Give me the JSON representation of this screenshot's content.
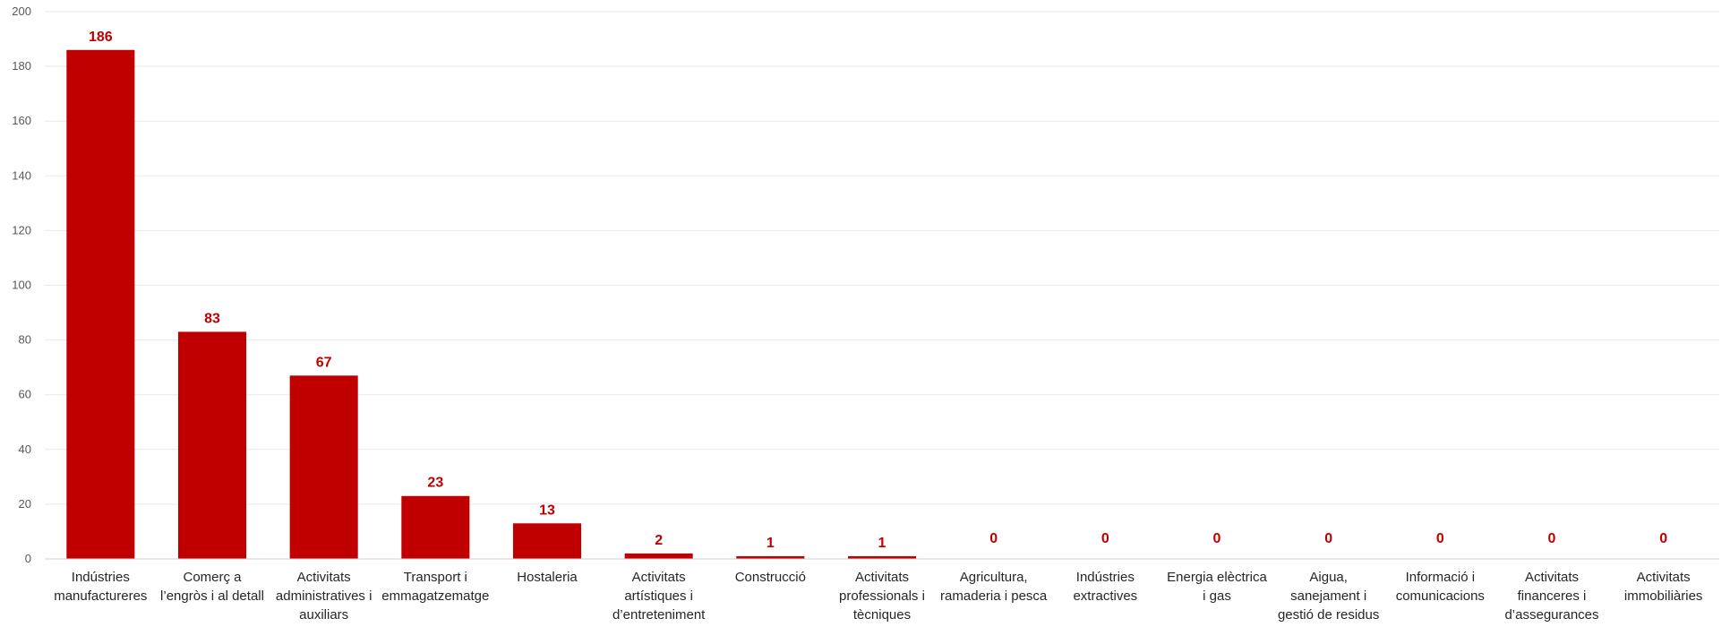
{
  "chart_data": {
    "type": "bar",
    "title": "",
    "xlabel": "",
    "ylabel": "",
    "ylim": [
      0,
      200
    ],
    "yticks": [
      0,
      20,
      40,
      60,
      80,
      100,
      120,
      140,
      160,
      180,
      200
    ],
    "grid": true,
    "bar_color": "#c00000",
    "label_color": "#c00000",
    "categories": [
      [
        "Indústries",
        "manufactureres"
      ],
      [
        "Comerç a",
        "l’engròs i al detall"
      ],
      [
        "Activitats",
        "administratives i",
        "auxiliars"
      ],
      [
        "Transport i",
        "emmagatzematge"
      ],
      [
        "Hostaleria"
      ],
      [
        "Activitats",
        "artístiques i",
        "d’entreteniment"
      ],
      [
        "Construcció"
      ],
      [
        "Activitats",
        "professionals i",
        "tècniques"
      ],
      [
        "Agricultura,",
        "ramaderia i pesca"
      ],
      [
        "Indústries",
        "extractives"
      ],
      [
        "Energia elèctrica",
        "i gas"
      ],
      [
        "Aigua,",
        "sanejament i",
        "gestió de residus"
      ],
      [
        "Informació i",
        "comunicacions"
      ],
      [
        "Activitats",
        "financeres i",
        "d’assegurances"
      ],
      [
        "Activitats",
        "immobiliàries"
      ]
    ],
    "values": [
      186,
      83,
      67,
      23,
      13,
      2,
      1,
      1,
      0,
      0,
      0,
      0,
      0,
      0,
      0
    ]
  }
}
